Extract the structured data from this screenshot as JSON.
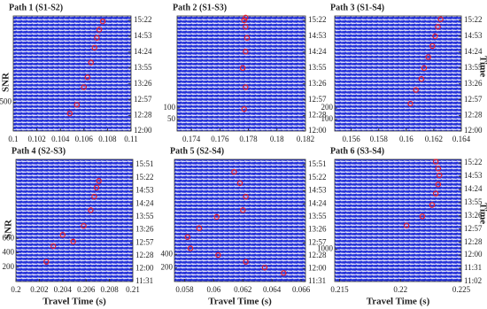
{
  "chart_data": [
    {
      "type": "scatter",
      "title": "Path 1 (S1-S2)",
      "ylabel": "SNR",
      "xlim": [
        0.1,
        0.11
      ],
      "xticks": [
        0.1,
        0.102,
        0.104,
        0.106,
        0.108,
        0.11
      ],
      "ylim": [
        0,
        2000
      ],
      "yticks": [
        500
      ],
      "y2lim": [
        720,
        930
      ],
      "y2ticks": [
        {
          "value": 720,
          "label": "12:00"
        },
        {
          "value": 748,
          "label": "12:28"
        },
        {
          "value": 777,
          "label": "12:57"
        },
        {
          "value": 806,
          "label": "13:26"
        },
        {
          "value": 835,
          "label": "13:55"
        },
        {
          "value": 864,
          "label": "14:24"
        },
        {
          "value": 893,
          "label": "14:53"
        },
        {
          "value": 922,
          "label": "15:22"
        }
      ],
      "series": [
        {
          "color": "#e8202a",
          "axis": "y2",
          "x": [
            0.1048,
            0.1054,
            0.106,
            0.1063,
            0.1066,
            0.1069,
            0.1071,
            0.1073,
            0.1076
          ],
          "values": [
            752,
            768,
            800,
            818,
            845,
            872,
            890,
            905,
            920
          ]
        }
      ]
    },
    {
      "type": "scatter",
      "title": "Path 2 (S1-S3)",
      "xlim": [
        0.173,
        0.182
      ],
      "xticks": [
        0.174,
        0.176,
        0.178,
        0.18,
        0.182
      ],
      "ylim": [
        0,
        500
      ],
      "yticks": [
        50,
        100
      ],
      "y2lim": [
        720,
        930
      ],
      "y2ticks": [
        {
          "value": 720,
          "label": "12:00"
        },
        {
          "value": 748,
          "label": "12:28"
        },
        {
          "value": 777,
          "label": "12:57"
        },
        {
          "value": 806,
          "label": "13:26"
        },
        {
          "value": 835,
          "label": "13:55"
        },
        {
          "value": 864,
          "label": "14:24"
        },
        {
          "value": 893,
          "label": "14:53"
        },
        {
          "value": 922,
          "label": "15:22"
        }
      ],
      "series": [
        {
          "color": "#e8202a",
          "axis": "y2",
          "x": [
            0.1777,
            0.1778,
            0.1776,
            0.1778,
            0.1779,
            0.1778,
            0.1777,
            0.1778
          ],
          "values": [
            760,
            800,
            835,
            865,
            890,
            910,
            922,
            927
          ]
        }
      ]
    },
    {
      "type": "scatter",
      "title": "Path 3 (S1-S4)",
      "y2label": "Time",
      "xlim": [
        0.1548,
        0.164
      ],
      "xticks": [
        0.156,
        0.158,
        0.16,
        0.162,
        0.164
      ],
      "ylim": [
        0,
        1000
      ],
      "yticks": [
        100,
        200
      ],
      "y2lim": [
        720,
        930
      ],
      "y2ticks": [
        {
          "value": 720,
          "label": "12:00"
        },
        {
          "value": 748,
          "label": "12:28"
        },
        {
          "value": 777,
          "label": "12:57"
        },
        {
          "value": 806,
          "label": "13:26"
        },
        {
          "value": 835,
          "label": "13:55"
        },
        {
          "value": 864,
          "label": "14:24"
        },
        {
          "value": 893,
          "label": "14:53"
        },
        {
          "value": 922,
          "label": "15:22"
        }
      ],
      "series": [
        {
          "color": "#e8202a",
          "axis": "y2",
          "x": [
            0.1603,
            0.1607,
            0.1611,
            0.1613,
            0.1616,
            0.1619,
            0.1621,
            0.1623,
            0.1625
          ],
          "values": [
            770,
            795,
            815,
            835,
            855,
            875,
            893,
            910,
            924
          ]
        }
      ]
    },
    {
      "type": "scatter",
      "title": "Path 4 (S2-S3)",
      "ylabel": "SNR",
      "xlabel": "Travel Time (s)",
      "xlim": [
        0.2,
        0.21
      ],
      "xticks": [
        0.2,
        0.202,
        0.204,
        0.206,
        0.208,
        0.21
      ],
      "ylim": [
        0,
        1700
      ],
      "yticks": [
        200,
        400,
        600
      ],
      "y2lim": [
        691,
        963
      ],
      "y2ticks": [
        {
          "value": 691,
          "label": "11:31"
        },
        {
          "value": 720,
          "label": "12:00"
        },
        {
          "value": 748,
          "label": "12:28"
        },
        {
          "value": 777,
          "label": "12:57"
        },
        {
          "value": 806,
          "label": "13:26"
        },
        {
          "value": 835,
          "label": "13:55"
        },
        {
          "value": 864,
          "label": "14:24"
        },
        {
          "value": 893,
          "label": "14:53"
        },
        {
          "value": 922,
          "label": "15:22"
        },
        {
          "value": 951,
          "label": "15:51"
        }
      ],
      "series": [
        {
          "color": "#e8202a",
          "axis": "y2",
          "x": [
            0.2026,
            0.2032,
            0.204,
            0.2049,
            0.2058,
            0.2064,
            0.2067,
            0.2069,
            0.2071
          ],
          "values": [
            735,
            770,
            795,
            780,
            815,
            850,
            880,
            900,
            915
          ]
        }
      ]
    },
    {
      "type": "scatter",
      "title": "Path 5 (S2-S4)",
      "xlabel": "Travel Time (s)",
      "xlim": [
        0.0573,
        0.0663
      ],
      "xticks": [
        0.058,
        0.06,
        0.062,
        0.064,
        0.066
      ],
      "ylim": [
        0,
        1800
      ],
      "yticks": [
        200,
        400
      ],
      "y2lim": [
        691,
        963
      ],
      "y2ticks": [
        {
          "value": 691,
          "label": "11:31"
        },
        {
          "value": 720,
          "label": "12:00"
        },
        {
          "value": 748,
          "label": "12:28"
        },
        {
          "value": 777,
          "label": "12:57"
        },
        {
          "value": 806,
          "label": "13:26"
        },
        {
          "value": 835,
          "label": "13:55"
        },
        {
          "value": 864,
          "label": "14:24"
        },
        {
          "value": 893,
          "label": "14:53"
        },
        {
          "value": 922,
          "label": "15:22"
        },
        {
          "value": 951,
          "label": "15:51"
        }
      ],
      "series": [
        {
          "color": "#e8202a",
          "axis": "y2",
          "x": [
            0.0614,
            0.0618,
            0.0622,
            0.062,
            0.0602,
            0.059,
            0.0582,
            0.0584,
            0.0603,
            0.0622,
            0.0635,
            0.0648
          ],
          "values": [
            935,
            910,
            880,
            850,
            835,
            810,
            790,
            765,
            750,
            735,
            722,
            710
          ]
        }
      ]
    },
    {
      "type": "scatter",
      "title": "Path 6 (S3-S4)",
      "y2label": "Time",
      "xlabel": "Travel Time (s)",
      "xlim": [
        0.2146,
        0.225
      ],
      "xticks": [
        0.215,
        0.22,
        0.225
      ],
      "ylim": [
        0,
        3800
      ],
      "yticks": [
        1000
      ],
      "y2lim": [
        662,
        930
      ],
      "y2ticks": [
        {
          "value": 662,
          "label": "11:02"
        },
        {
          "value": 691,
          "label": "11:31"
        },
        {
          "value": 720,
          "label": "12:00"
        },
        {
          "value": 748,
          "label": "12:28"
        },
        {
          "value": 777,
          "label": "12:57"
        },
        {
          "value": 806,
          "label": "13:26"
        },
        {
          "value": 835,
          "label": "13:55"
        },
        {
          "value": 864,
          "label": "14:24"
        },
        {
          "value": 893,
          "label": "14:53"
        },
        {
          "value": 922,
          "label": "15:22"
        }
      ],
      "series": [
        {
          "color": "#e8202a",
          "axis": "y2",
          "x": [
            0.2205,
            0.2218,
            0.2226,
            0.2229,
            0.2231,
            0.2232,
            0.2231,
            0.2229
          ],
          "values": [
            785,
            805,
            830,
            855,
            875,
            895,
            910,
            925
          ]
        }
      ]
    }
  ]
}
